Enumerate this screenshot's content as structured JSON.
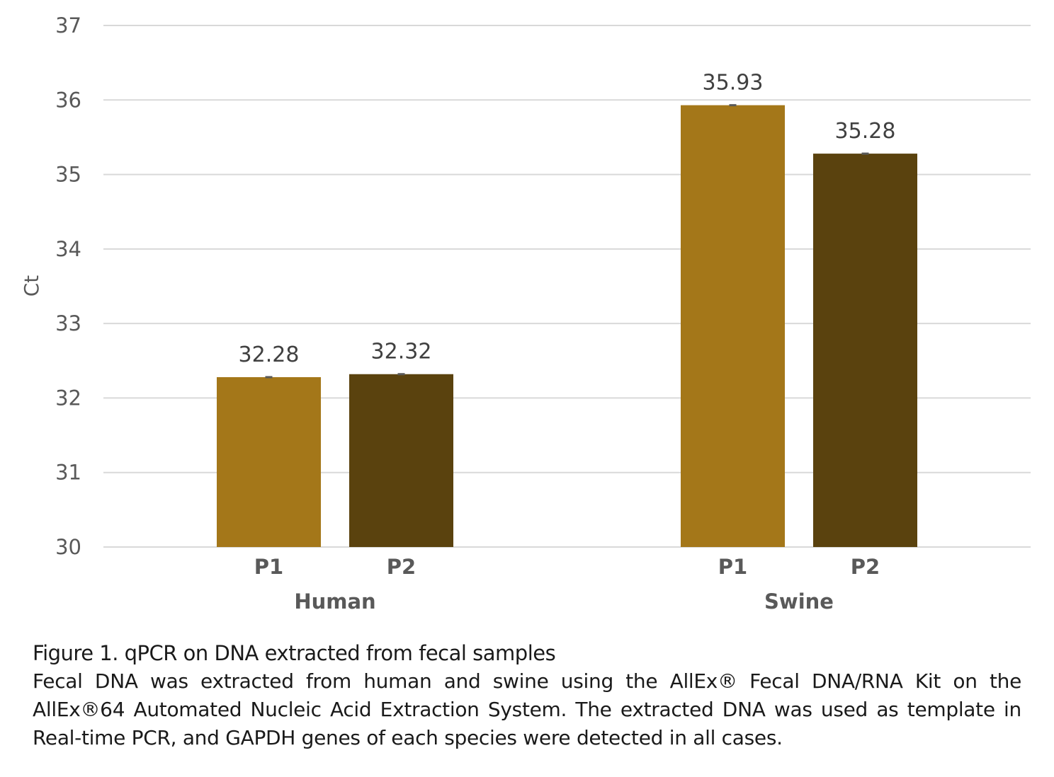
{
  "chart_data": {
    "type": "bar",
    "title": "",
    "xlabel": "",
    "ylabel": "Ct",
    "ylim": [
      30,
      37
    ],
    "yticks": [
      30,
      31,
      32,
      33,
      34,
      35,
      36,
      37
    ],
    "grid": true,
    "legend": "none",
    "groups": [
      {
        "name": "Human",
        "categories": [
          "P1",
          "P2"
        ],
        "values": [
          32.28,
          32.32
        ],
        "labels": [
          "32.28",
          "32.32"
        ]
      },
      {
        "name": "Swine",
        "categories": [
          "P1",
          "P2"
        ],
        "values": [
          35.93,
          35.28
        ],
        "labels": [
          "35.93",
          "35.28"
        ]
      }
    ],
    "series_colors": {
      "P1": "#A47719",
      "P2": "#5A420E"
    },
    "error_bars": true
  },
  "caption": {
    "title": "Figure 1. qPCR on DNA extracted from fecal samples",
    "body": "Fecal DNA was extracted from human and swine using the AllEx® Fecal DNA/RNA Kit on the AllEx®64 Automated Nucleic Acid Extraction System. The extracted DNA was used as template in Real-time PCR, and GAPDH genes of each species were detected in all cases."
  }
}
